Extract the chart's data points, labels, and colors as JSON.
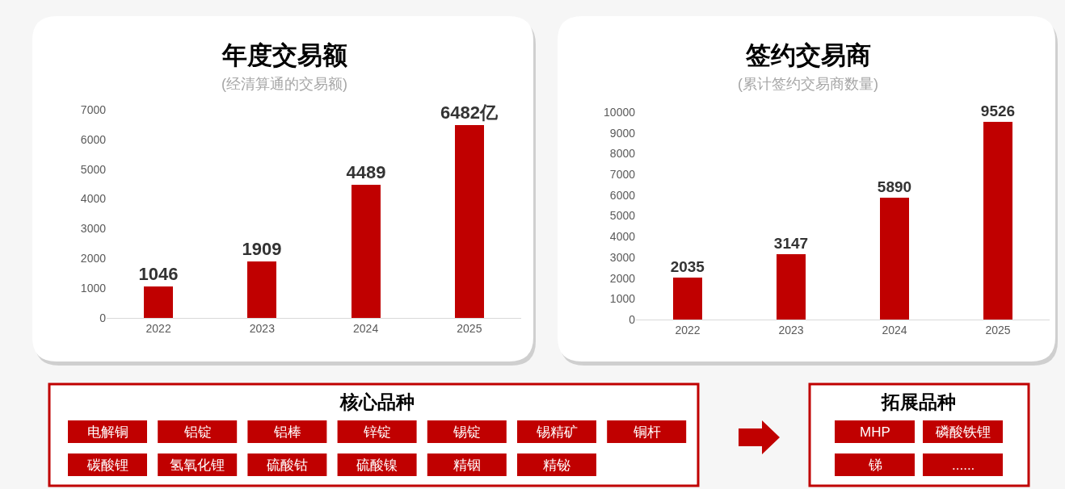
{
  "chart_data": [
    {
      "type": "bar",
      "title": "年度交易额",
      "subtitle": "(经清算通的交易额)",
      "categories": [
        "2022",
        "2023",
        "2024",
        "2025"
      ],
      "values": [
        1046,
        1909,
        4489,
        6482
      ],
      "value_labels": [
        "1046",
        "1909",
        "4489",
        "6482亿"
      ],
      "color": "#c00000",
      "ylim": [
        0,
        7000
      ],
      "yticks": [
        0,
        1000,
        2000,
        3000,
        4000,
        5000,
        6000,
        7000
      ]
    },
    {
      "type": "bar",
      "title": "签约交易商",
      "subtitle": "(累计签约交易商数量)",
      "categories": [
        "2022",
        "2023",
        "2024",
        "2025"
      ],
      "values": [
        2035,
        3147,
        5890,
        9526
      ],
      "data_labels": true,
      "color": "#c00000",
      "ylim": [
        0,
        10000
      ],
      "yticks": [
        0,
        1000,
        2000,
        3000,
        4000,
        5000,
        6000,
        7000,
        8000,
        9000,
        10000
      ]
    },
    {
      "type": "other",
      "title": "核心品种",
      "color": "#c00000",
      "annotations": [
        "电解铜",
        "铝锭",
        "铝棒",
        "锌锭",
        "锡锭",
        "锡精矿",
        "铜杆",
        "碳酸锂",
        "氢氧化锂",
        "硫酸钴",
        "硫酸镍",
        "精铟",
        "精铋"
      ]
    },
    {
      "type": "other",
      "title": "拓展品种",
      "color": "#c00000",
      "annotations": [
        "MHP",
        "磷酸铁锂",
        "锑",
        "......"
      ]
    }
  ]
}
